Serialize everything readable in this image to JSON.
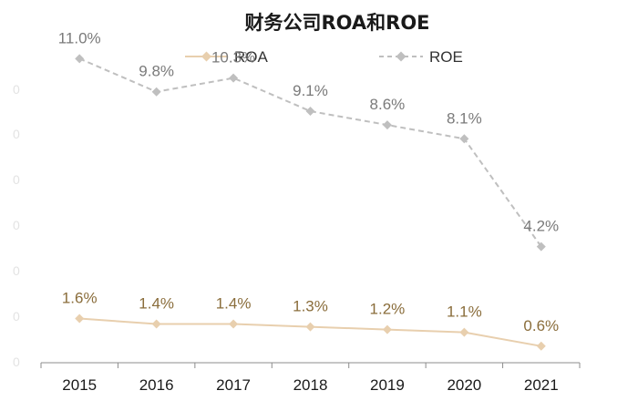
{
  "chart_data": {
    "type": "line",
    "title": "财务公司ROA和ROE",
    "categories": [
      "2015",
      "2016",
      "2017",
      "2018",
      "2019",
      "2020",
      "2021"
    ],
    "ylim": [
      0,
      12
    ],
    "grid": false,
    "legend_position": "top",
    "series": [
      {
        "name": "ROA",
        "values": [
          1.6,
          1.4,
          1.4,
          1.3,
          1.2,
          1.1,
          0.6
        ],
        "labels": [
          "1.6%",
          "1.4%",
          "1.4%",
          "1.3%",
          "1.2%",
          "1.1%",
          "0.6%"
        ],
        "color": "#e8cfae",
        "label_color": "#8a6d3b",
        "line_style": "solid",
        "marker": "diamond"
      },
      {
        "name": "ROE",
        "values": [
          11.0,
          9.8,
          10.3,
          9.1,
          8.6,
          8.1,
          4.2
        ],
        "labels": [
          "11.0%",
          "9.8%",
          "10.3%",
          "9.1%",
          "8.6%",
          "8.1%",
          "4.2%"
        ],
        "color": "#bfbfbf",
        "label_color": "#7a7a7a",
        "line_style": "dashed",
        "marker": "diamond"
      }
    ]
  }
}
